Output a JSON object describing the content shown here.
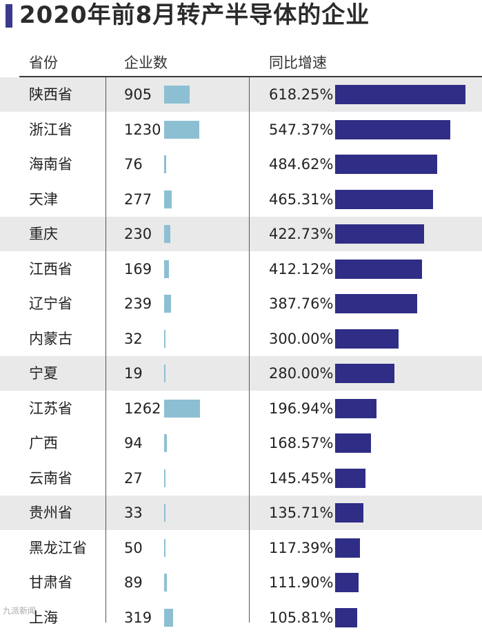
{
  "title": "2020年前8月转产半导体的企业",
  "watermark": "九派新闻",
  "chart_data": {
    "type": "table",
    "title": "2020年前8月转产半导体的企业",
    "columns": [
      "省份",
      "企业数",
      "同比增速"
    ],
    "rows": [
      {
        "province": "陕西省",
        "count": 905,
        "growth": 618.25,
        "growth_label": "618.25%"
      },
      {
        "province": "浙江省",
        "count": 1230,
        "growth": 547.37,
        "growth_label": "547.37%"
      },
      {
        "province": "海南省",
        "count": 76,
        "growth": 484.62,
        "growth_label": "484.62%"
      },
      {
        "province": "天津",
        "count": 277,
        "growth": 465.31,
        "growth_label": "465.31%"
      },
      {
        "province": "重庆",
        "count": 230,
        "growth": 422.73,
        "growth_label": "422.73%"
      },
      {
        "province": "江西省",
        "count": 169,
        "growth": 412.12,
        "growth_label": "412.12%"
      },
      {
        "province": "辽宁省",
        "count": 239,
        "growth": 387.76,
        "growth_label": "387.76%"
      },
      {
        "province": "内蒙古",
        "count": 32,
        "growth": 300.0,
        "growth_label": "300.00%"
      },
      {
        "province": "宁夏",
        "count": 19,
        "growth": 280.0,
        "growth_label": "280.00%"
      },
      {
        "province": "江苏省",
        "count": 1262,
        "growth": 196.94,
        "growth_label": "196.94%"
      },
      {
        "province": "广西",
        "count": 94,
        "growth": 168.57,
        "growth_label": "168.57%"
      },
      {
        "province": "云南省",
        "count": 27,
        "growth": 145.45,
        "growth_label": "145.45%"
      },
      {
        "province": "贵州省",
        "count": 33,
        "growth": 135.71,
        "growth_label": "135.71%"
      },
      {
        "province": "黑龙江省",
        "count": 50,
        "growth": 117.39,
        "growth_label": "117.39%"
      },
      {
        "province": "甘肃省",
        "count": 89,
        "growth": 111.9,
        "growth_label": "111.90%"
      },
      {
        "province": "上海",
        "count": 319,
        "growth": 105.81,
        "growth_label": "105.81%"
      }
    ],
    "shaded_rows": [
      0,
      4,
      8,
      12
    ],
    "colors": {
      "count_bar": "#8dbfd2",
      "growth_bar": "#2f2d86",
      "shade": "#e9e9e9"
    }
  }
}
